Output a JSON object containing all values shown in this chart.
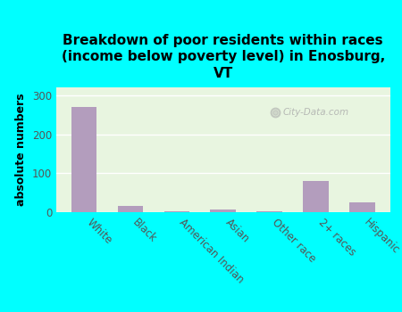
{
  "categories": [
    "White",
    "Black",
    "American Indian",
    "Asian",
    "Other race",
    "2+ races",
    "Hispanic"
  ],
  "values": [
    270,
    15,
    2,
    8,
    2,
    80,
    25
  ],
  "bar_color": "#b39dbd",
  "background_color": "#00ffff",
  "plot_bg_color": "#e8f5e0",
  "title": "Breakdown of poor residents within races\n(income below poverty level) in Enosburg,\nVT",
  "ylabel": "absolute numbers",
  "ylim": [
    0,
    320
  ],
  "yticks": [
    0,
    100,
    200,
    300
  ],
  "watermark": "City-Data.com",
  "title_fontsize": 11,
  "ylabel_fontsize": 9,
  "tick_fontsize": 8.5,
  "xtick_fontsize": 8.5
}
